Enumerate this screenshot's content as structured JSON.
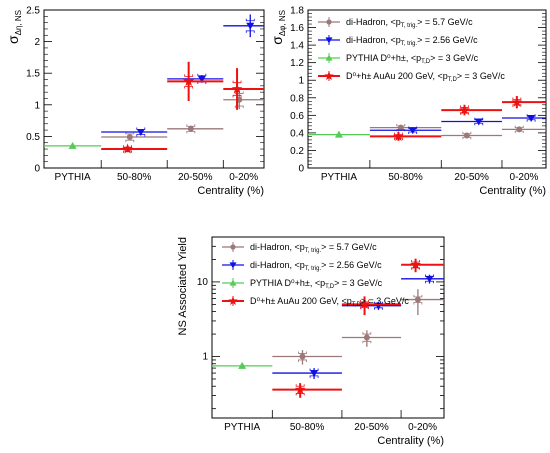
{
  "colors": {
    "dihadron_57": "#9c7878",
    "dihadron_256": "#1010e6",
    "pythia": "#55cc55",
    "dh_auau": "#ee1111"
  },
  "legend": [
    {
      "key": "dihadron_57",
      "label": "di-Hadron, <p",
      "sub": "T, trig.",
      "tail": "> =  5.7 GeV/c",
      "marker": "circle"
    },
    {
      "key": "dihadron_256",
      "label": "di-Hadron, <p",
      "sub": "T, trig.",
      "tail": "> =  2.56 GeV/c",
      "marker": "tri-down"
    },
    {
      "key": "pythia",
      "label": "PYTHIA D⁰+h±, <p",
      "sub": "T,D",
      "tail": "> = 3 GeV/c",
      "marker": "tri-up"
    },
    {
      "key": "dh_auau",
      "label": "D⁰+h± AuAu 200 GeV, <p",
      "sub": "T,D",
      "tail": "> = 3 GeV/c",
      "marker": "star"
    }
  ],
  "chart_data": [
    {
      "type": "scatter",
      "ylabel": "σ",
      "ylabel_sub": "Δη, NS",
      "xlabel": "Centrality (%)",
      "categories": [
        "PYTHIA",
        "50-80%",
        "20-50%",
        "0-20%"
      ],
      "ylim": [
        0,
        2.5
      ],
      "yticks": [
        "0",
        "0.5",
        "1",
        "1.5",
        "2",
        "2.5"
      ],
      "yscale": "linear",
      "series": [
        {
          "key": "dihadron_57",
          "points": [
            null,
            {
              "v": 0.49,
              "err": 0.04,
              "sys": 0.05
            },
            {
              "v": 0.62,
              "err": 0.05,
              "sys": 0.04
            },
            {
              "v": 1.08,
              "err": 0.15,
              "sys": 0.1
            }
          ]
        },
        {
          "key": "dihadron_256",
          "points": [
            null,
            {
              "v": 0.57,
              "err": 0.04,
              "sys": 0.04
            },
            {
              "v": 1.41,
              "err": 0.06,
              "sys": 0.05
            },
            {
              "v": 2.25,
              "err": 0.18,
              "sys": 0.08
            }
          ]
        },
        {
          "key": "pythia",
          "points": [
            {
              "v": 0.35,
              "err": 0.0,
              "sys": 0.0
            },
            null,
            null,
            null
          ]
        },
        {
          "key": "dh_auau",
          "points": [
            null,
            {
              "v": 0.3,
              "err": 0.05,
              "sys": 0.03
            },
            {
              "v": 1.37,
              "err": 0.31,
              "sys": 0.08
            },
            {
              "v": 1.25,
              "err": 0.33,
              "sys": 0.1
            }
          ]
        }
      ]
    },
    {
      "type": "scatter",
      "ylabel": "σ",
      "ylabel_sub": "Δφ, NS",
      "xlabel": "Centrality (%)",
      "categories": [
        "PYTHIA",
        "50-80%",
        "20-50%",
        "0-20%"
      ],
      "ylim": [
        0,
        1.8
      ],
      "yticks": [
        "0",
        "0.2",
        "0.4",
        "0.6",
        "0.8",
        "1",
        "1.2",
        "1.4",
        "1.6",
        "1.8"
      ],
      "yscale": "linear",
      "series": [
        {
          "key": "dihadron_57",
          "points": [
            null,
            {
              "v": 0.46,
              "err": 0.03,
              "sys": 0.02
            },
            {
              "v": 0.37,
              "err": 0.02,
              "sys": 0.02
            },
            {
              "v": 0.44,
              "err": 0.03,
              "sys": 0.02
            }
          ]
        },
        {
          "key": "dihadron_256",
          "points": [
            null,
            {
              "v": 0.43,
              "err": 0.02,
              "sys": 0.02
            },
            {
              "v": 0.53,
              "err": 0.02,
              "sys": 0.02
            },
            {
              "v": 0.57,
              "err": 0.02,
              "sys": 0.02
            }
          ]
        },
        {
          "key": "pythia",
          "points": [
            {
              "v": 0.38,
              "err": 0.0,
              "sys": 0.0
            },
            null,
            null,
            null
          ]
        },
        {
          "key": "dh_auau",
          "points": [
            null,
            {
              "v": 0.36,
              "err": 0.05,
              "sys": 0.02
            },
            {
              "v": 0.66,
              "err": 0.06,
              "sys": 0.03
            },
            {
              "v": 0.75,
              "err": 0.07,
              "sys": 0.03
            }
          ]
        }
      ]
    },
    {
      "type": "scatter",
      "ylabel": "NS Associated Yield",
      "ylabel_sub": "",
      "xlabel": "Centrality (%)",
      "categories": [
        "PYTHIA",
        "50-80%",
        "20-50%",
        "0-20%"
      ],
      "ylim": [
        0.15,
        40
      ],
      "yticks": [
        "1",
        "10"
      ],
      "ytick_values": [
        1,
        10
      ],
      "yscale": "log",
      "series": [
        {
          "key": "dihadron_57",
          "points": [
            null,
            {
              "v": 1.0,
              "err": 0.22,
              "sys": 0.1
            },
            {
              "v": 1.8,
              "err": 0.45,
              "sys": 0.2
            },
            {
              "v": 5.8,
              "err": 2.2,
              "sys": 0.5
            }
          ]
        },
        {
          "key": "dihadron_256",
          "points": [
            null,
            {
              "v": 0.6,
              "err": 0.1,
              "sys": 0.05
            },
            {
              "v": 4.8,
              "err": 0.6,
              "sys": 0.3
            },
            {
              "v": 11.0,
              "err": 1.5,
              "sys": 0.8
            }
          ]
        },
        {
          "key": "pythia",
          "points": [
            {
              "v": 0.75,
              "err": 0.0,
              "sys": 0.0
            },
            null,
            null,
            null
          ]
        },
        {
          "key": "dh_auau",
          "points": [
            null,
            {
              "v": 0.36,
              "err": 0.08,
              "sys": 0.04
            },
            {
              "v": 5.0,
              "err": 1.4,
              "sys": 0.4
            },
            {
              "v": 17.0,
              "err": 3.5,
              "sys": 1.5
            }
          ]
        }
      ]
    }
  ]
}
